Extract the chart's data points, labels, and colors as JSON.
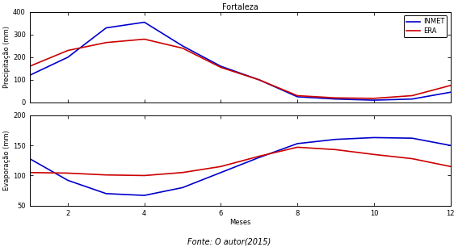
{
  "title": "Fortaleza",
  "fonte": "Fonte: O autor(2015)",
  "months": [
    1,
    2,
    3,
    4,
    5,
    6,
    7,
    8,
    9,
    10,
    11,
    12
  ],
  "precip_inmet": [
    120,
    200,
    330,
    355,
    250,
    160,
    100,
    25,
    15,
    10,
    15,
    45
  ],
  "precip_era": [
    160,
    230,
    265,
    280,
    240,
    155,
    100,
    30,
    20,
    18,
    30,
    75
  ],
  "evap_inmet": [
    128,
    92,
    70,
    67,
    80,
    105,
    130,
    153,
    160,
    163,
    162,
    150
  ],
  "evap_era": [
    105,
    104,
    101,
    100,
    105,
    115,
    132,
    147,
    143,
    135,
    128,
    115
  ],
  "precip_ylabel": "Precipitação (mm)",
  "evap_ylabel": "Evaporação (mm)",
  "xlabel": "Meses",
  "precip_ylim": [
    0,
    400
  ],
  "evap_ylim": [
    50,
    200
  ],
  "xticks": [
    2,
    4,
    6,
    8,
    10,
    12
  ],
  "precip_yticks": [
    0,
    100,
    200,
    300,
    400
  ],
  "evap_yticks": [
    50,
    100,
    150,
    200
  ],
  "color_inmet": "#0000CC",
  "color_era": "#CC0000",
  "legend_labels": [
    "INMET",
    "ERA"
  ],
  "linewidth": 1.2,
  "title_fontsize": 7,
  "label_fontsize": 6,
  "tick_fontsize": 6,
  "legend_fontsize": 6,
  "fonte_fontsize": 7
}
